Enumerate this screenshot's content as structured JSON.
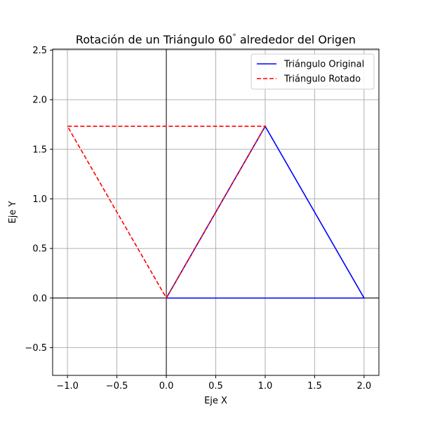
{
  "chart_data": {
    "type": "line",
    "title": "Rotación de un Triángulo 60$^\\circ$ alrededor del Origen",
    "title_parts": [
      "Rotación de un Triángulo 60",
      "°",
      " alrededor del Origen"
    ],
    "xlabel": "Eje X",
    "ylabel": "Eje Y",
    "xlim": [
      -1.15,
      2.15
    ],
    "ylim": [
      -0.78,
      2.51
    ],
    "x_ticks": [
      -1.0,
      -0.5,
      0.0,
      0.5,
      1.0,
      1.5,
      2.0
    ],
    "x_tick_labels": [
      "−1.0",
      "−0.5",
      "0.0",
      "0.5",
      "1.0",
      "1.5",
      "2.0"
    ],
    "y_ticks": [
      -0.5,
      0.0,
      0.5,
      1.0,
      1.5,
      2.0,
      2.5
    ],
    "y_tick_labels": [
      "−0.5",
      "0.0",
      "0.5",
      "1.0",
      "1.5",
      "2.0",
      "2.5"
    ],
    "grid": true,
    "origin_axes": true,
    "legend_position": "top-right",
    "series": [
      {
        "name": "Triángulo Original",
        "color": "#0000ff",
        "linestyle": "solid",
        "x": [
          0,
          2,
          1,
          0
        ],
        "y": [
          0,
          0,
          1.732,
          0
        ]
      },
      {
        "name": "Triángulo Rotado",
        "color": "#ff0000",
        "linestyle": "dashed",
        "x": [
          0,
          1,
          -1,
          0
        ],
        "y": [
          0,
          1.732,
          1.732,
          0
        ]
      }
    ]
  }
}
